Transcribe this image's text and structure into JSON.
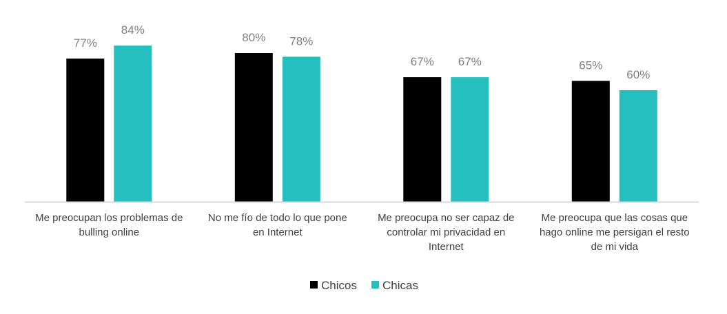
{
  "chart_data": {
    "type": "bar",
    "categories": [
      [
        "Me preocupan los problemas de",
        "bulling online"
      ],
      [
        "No me fío de todo lo que pone",
        "en Internet"
      ],
      [
        "Me preocupa no ser capaz de",
        "controlar mi privacidad en",
        "Internet"
      ],
      [
        "Me preocupa que las cosas que",
        "hago online me persigan el resto",
        "de mi vida"
      ]
    ],
    "series": [
      {
        "name": "Chicos",
        "color": "#000000",
        "values": [
          77,
          80,
          67,
          65
        ],
        "labels": [
          "77%",
          "80%",
          "67%",
          "65%"
        ]
      },
      {
        "name": "Chicas",
        "color": "#26bfbf",
        "values": [
          84,
          78,
          67,
          60
        ],
        "labels": [
          "84%",
          "78%",
          "67%",
          "60%"
        ]
      }
    ],
    "ylim": [
      0,
      100
    ],
    "grid": false,
    "legend_position": "bottom",
    "axis_color": "#d9d9d9"
  }
}
